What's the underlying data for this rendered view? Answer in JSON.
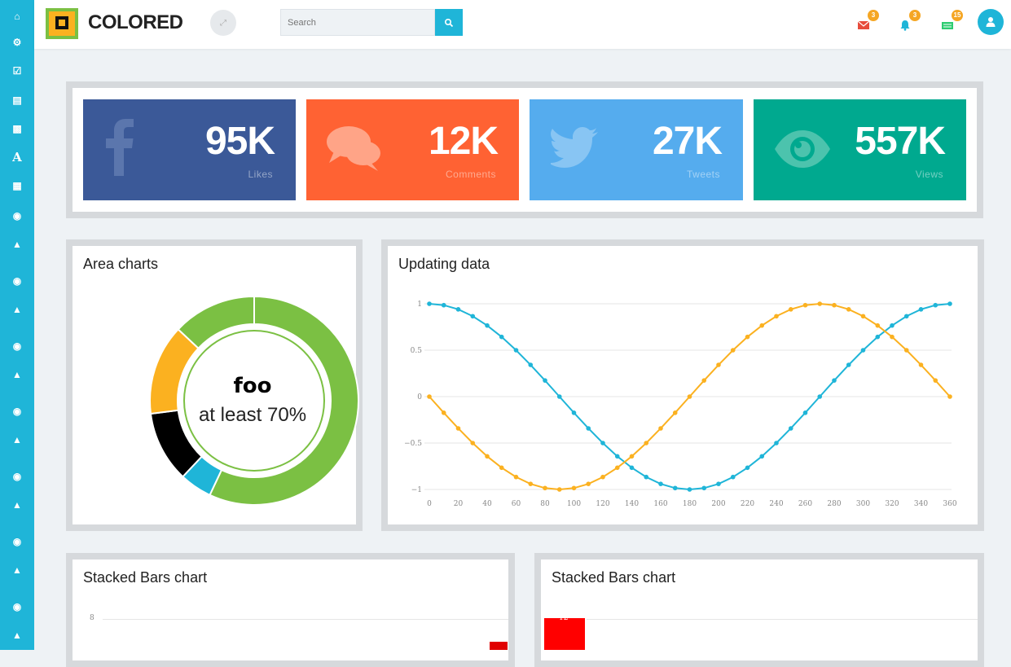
{
  "brand": {
    "name": "COLORED"
  },
  "search": {
    "placeholder": "Search"
  },
  "header_icons": [
    {
      "name": "envelope-icon",
      "badge": "3",
      "color": "#e74c3c"
    },
    {
      "name": "bell-icon",
      "badge": "3",
      "color": "#1fb5d8"
    },
    {
      "name": "money-icon",
      "badge": "15",
      "color": "#2ecc71"
    }
  ],
  "stats": [
    {
      "value": "95K",
      "label": "Likes",
      "color": "#3b5998",
      "icon": "facebook-icon"
    },
    {
      "value": "12K",
      "label": "Comments",
      "color": "#ff6233",
      "icon": "comments-icon"
    },
    {
      "value": "27K",
      "label": "Tweets",
      "color": "#55acee",
      "icon": "twitter-icon"
    },
    {
      "value": "557K",
      "label": "Views",
      "color": "#00a98f",
      "icon": "eye-icon"
    }
  ],
  "area_panel": {
    "title": "Area charts",
    "center_title": "foo",
    "center_sub": "at least 70%"
  },
  "updating_panel": {
    "title": "Updating data"
  },
  "stacked_left": {
    "title": "Stacked Bars chart",
    "ytick": "8"
  },
  "stacked_right": {
    "title": "Stacked Bars chart",
    "ytick": "12"
  },
  "chart_data": [
    {
      "type": "pie",
      "title": "",
      "donut": true,
      "slices": [
        {
          "value": 57,
          "color": "#7bc043"
        },
        {
          "value": 5,
          "color": "#1fb5d8"
        },
        {
          "value": 11,
          "color": "#000000"
        },
        {
          "value": 14,
          "color": "#fbb120"
        },
        {
          "value": 13,
          "color": "#7bc043"
        }
      ]
    },
    {
      "type": "line",
      "title": "",
      "x": [
        0,
        10,
        20,
        30,
        40,
        50,
        60,
        70,
        80,
        90,
        100,
        110,
        120,
        130,
        140,
        150,
        160,
        170,
        180,
        190,
        200,
        210,
        220,
        230,
        240,
        250,
        260,
        270,
        280,
        290,
        300,
        310,
        320,
        330,
        340,
        350,
        360
      ],
      "series": [
        {
          "color": "#1fb5d8",
          "values": [
            1,
            0.985,
            0.94,
            0.866,
            0.766,
            0.643,
            0.5,
            0.342,
            0.174,
            0,
            -0.174,
            -0.342,
            -0.5,
            -0.643,
            -0.766,
            -0.866,
            -0.94,
            -0.985,
            -1,
            -0.985,
            -0.94,
            -0.866,
            -0.766,
            -0.643,
            -0.5,
            -0.342,
            -0.174,
            0,
            0.174,
            0.342,
            0.5,
            0.643,
            0.766,
            0.866,
            0.94,
            0.985,
            1
          ]
        },
        {
          "color": "#fbb120",
          "values": [
            0,
            -0.174,
            -0.342,
            -0.5,
            -0.643,
            -0.766,
            -0.866,
            -0.94,
            -0.985,
            -1,
            -0.985,
            -0.94,
            -0.866,
            -0.766,
            -0.643,
            -0.5,
            -0.342,
            -0.174,
            0,
            0.174,
            0.342,
            0.5,
            0.643,
            0.766,
            0.866,
            0.94,
            0.985,
            1,
            0.985,
            0.94,
            0.866,
            0.766,
            0.643,
            0.5,
            0.342,
            0.174,
            0
          ]
        }
      ],
      "xticks": [
        0,
        20,
        40,
        60,
        80,
        100,
        120,
        140,
        160,
        180,
        200,
        220,
        240,
        260,
        280,
        300,
        320,
        340,
        360
      ],
      "yticks": [
        1,
        0.5,
        0,
        -0.5,
        -1
      ],
      "xlabel": "",
      "ylabel": "",
      "ylim": [
        -1,
        1
      ],
      "xlim": [
        0,
        360
      ],
      "grid": true
    }
  ]
}
